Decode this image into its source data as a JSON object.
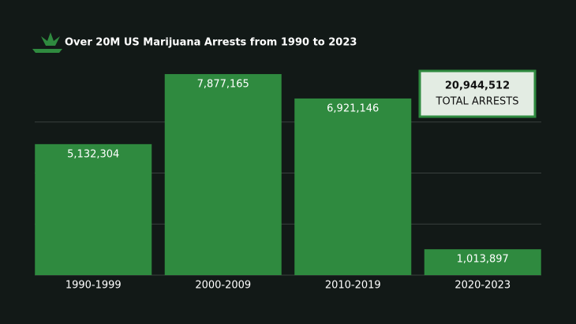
{
  "chart_data": {
    "type": "bar",
    "title": "Over 20M US Marijuana Arrests from 1990 to 2023",
    "categories": [
      "1990-1999",
      "2000-2009",
      "2010-2019",
      "2020-2023"
    ],
    "values": [
      5132304,
      7877165,
      6921146,
      1013897
    ],
    "value_labels": [
      "5,132,304",
      "7,877,165",
      "6,921,146",
      "1,013,897"
    ],
    "color": "#2f8a3f",
    "ylim": [
      0,
      8000000
    ],
    "yticks": [
      0,
      2000000,
      4000000,
      6000000
    ],
    "grid": true,
    "total": "20,944,512",
    "total_label": "TOTAL ARRESTS"
  }
}
